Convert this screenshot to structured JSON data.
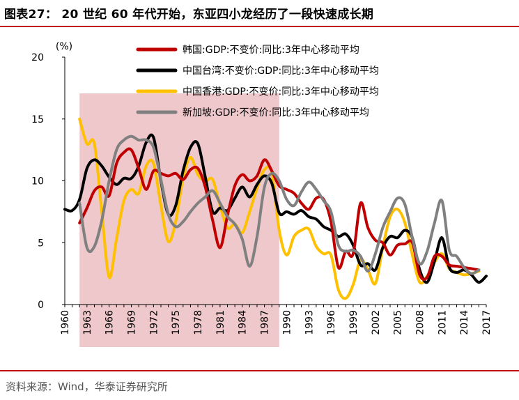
{
  "title": "图表27： 20 世纪 60 年代开始，东亚四小龙经历了一段快速成长期",
  "source": "资料来源：Wind，华泰证券研究所",
  "chart_data": {
    "type": "line",
    "unit_label": "(%)",
    "ylim": [
      0,
      20
    ],
    "yticks": [
      0,
      5,
      10,
      15,
      20
    ],
    "xlim": [
      1960,
      2017
    ],
    "xticks": [
      1960,
      1963,
      1966,
      1969,
      1972,
      1975,
      1978,
      1981,
      1984,
      1987,
      1990,
      1993,
      1996,
      1999,
      2002,
      2005,
      2008,
      2011,
      2014,
      2017
    ],
    "shaded_range": [
      1962,
      1989
    ],
    "shade_color": "#efc8cc",
    "grid": false,
    "legend_position": "top-right",
    "series": [
      {
        "name": "韩国:GDP:不变价:同比:3年中心移动平均",
        "color": "#c00000",
        "x": [
          1962,
          1963,
          1964,
          1965,
          1966,
          1967,
          1968,
          1969,
          1970,
          1971,
          1972,
          1973,
          1974,
          1975,
          1976,
          1977,
          1978,
          1979,
          1980,
          1981,
          1982,
          1983,
          1984,
          1985,
          1986,
          1987,
          1988,
          1989,
          1990,
          1991,
          1992,
          1993,
          1994,
          1995,
          1996,
          1997,
          1998,
          1999,
          2000,
          2001,
          2002,
          2003,
          2004,
          2005,
          2006,
          2007,
          2008,
          2009,
          2010,
          2011,
          2012,
          2013,
          2014,
          2015,
          2016
        ],
        "y": [
          6.6,
          7.8,
          9.2,
          9.5,
          8.8,
          11.4,
          12.3,
          12.5,
          11.0,
          9.3,
          10.8,
          10.6,
          10.4,
          10.6,
          10.1,
          10.9,
          11.0,
          9.5,
          6.8,
          4.6,
          7.2,
          9.6,
          10.5,
          10.0,
          10.4,
          11.7,
          10.8,
          9.6,
          9.3,
          9.0,
          8.2,
          7.7,
          8.6,
          8.5,
          6.7,
          3.0,
          4.3,
          4.1,
          8.2,
          6.2,
          5.2,
          5.0,
          4.0,
          4.8,
          4.9,
          5.0,
          2.4,
          2.2,
          3.9,
          3.9,
          3.2,
          3.1,
          3.0,
          2.9,
          2.8
        ]
      },
      {
        "name": "中国台湾:不变价:GDP:同比:3年中心移动平均",
        "color": "#000000",
        "x": [
          1960,
          1961,
          1962,
          1963,
          1964,
          1965,
          1966,
          1967,
          1968,
          1969,
          1970,
          1971,
          1972,
          1973,
          1974,
          1975,
          1976,
          1977,
          1978,
          1979,
          1980,
          1981,
          1982,
          1983,
          1984,
          1985,
          1986,
          1987,
          1988,
          1989,
          1990,
          1991,
          1992,
          1993,
          1994,
          1995,
          1996,
          1997,
          1998,
          1999,
          2000,
          2001,
          2002,
          2003,
          2004,
          2005,
          2006,
          2007,
          2008,
          2009,
          2010,
          2011,
          2012,
          2013,
          2014,
          2015,
          2016,
          2017
        ],
        "y": [
          7.7,
          7.6,
          8.5,
          11.0,
          11.7,
          11.2,
          10.3,
          9.7,
          10.2,
          10.2,
          11.2,
          13.1,
          13.5,
          10.0,
          7.3,
          8.0,
          10.8,
          12.7,
          13.0,
          10.3,
          7.5,
          7.8,
          7.6,
          8.6,
          9.5,
          8.7,
          9.7,
          10.4,
          9.8,
          7.4,
          7.5,
          7.3,
          7.6,
          7.1,
          6.9,
          6.3,
          6.0,
          5.5,
          5.7,
          4.8,
          3.2,
          3.3,
          2.8,
          4.6,
          5.5,
          5.4,
          6.0,
          5.4,
          2.8,
          1.8,
          3.5,
          5.4,
          3.0,
          2.6,
          2.8,
          2.4,
          1.8,
          2.3
        ]
      },
      {
        "name": "中国香港:GDP:不变价:同比:3年中心移动平均",
        "color": "#ffc000",
        "x": [
          1962,
          1963,
          1964,
          1965,
          1966,
          1967,
          1968,
          1969,
          1970,
          1971,
          1972,
          1973,
          1974,
          1975,
          1976,
          1977,
          1978,
          1979,
          1980,
          1981,
          1982,
          1983,
          1984,
          1985,
          1986,
          1987,
          1988,
          1989,
          1990,
          1991,
          1992,
          1993,
          1994,
          1995,
          1996,
          1997,
          1998,
          1999,
          2000,
          2001,
          2002,
          2003,
          2004,
          2005,
          2006,
          2007,
          2008,
          2009,
          2010,
          2011,
          2012,
          2013,
          2014,
          2015,
          2016
        ],
        "y": [
          15.0,
          13.0,
          13.0,
          7.5,
          2.2,
          5.3,
          8.4,
          9.3,
          9.0,
          11.2,
          11.4,
          8.0,
          5.1,
          6.7,
          10.2,
          11.9,
          10.5,
          10.0,
          10.1,
          8.0,
          6.2,
          6.5,
          5.8,
          7.5,
          9.4,
          10.9,
          10.6,
          6.0,
          4.0,
          5.5,
          6.0,
          6.1,
          4.7,
          4.1,
          4.0,
          1.2,
          0.5,
          1.6,
          3.6,
          2.8,
          1.7,
          4.6,
          7.1,
          7.7,
          6.6,
          4.0,
          1.8,
          2.3,
          3.4,
          4.1,
          2.9,
          2.6,
          2.4,
          2.5,
          2.7
        ]
      },
      {
        "name": "新加坡:GDP:不变价:同比:3年中心移动平均",
        "color": "#808080",
        "x": [
          1962,
          1963,
          1964,
          1965,
          1966,
          1967,
          1968,
          1969,
          1970,
          1971,
          1972,
          1973,
          1974,
          1975,
          1976,
          1977,
          1978,
          1979,
          1980,
          1981,
          1982,
          1983,
          1984,
          1985,
          1986,
          1987,
          1988,
          1989,
          1990,
          1991,
          1992,
          1993,
          1994,
          1995,
          1996,
          1997,
          1998,
          1999,
          2000,
          2001,
          2002,
          2003,
          2004,
          2005,
          2006,
          2007,
          2008,
          2009,
          2010,
          2011,
          2012,
          2013,
          2014,
          2015,
          2016
        ],
        "y": [
          8.2,
          4.6,
          4.7,
          6.8,
          10.0,
          12.5,
          13.3,
          13.6,
          13.3,
          13.3,
          12.7,
          10.1,
          7.3,
          6.3,
          6.7,
          7.5,
          8.2,
          8.7,
          9.2,
          8.2,
          7.1,
          6.5,
          5.3,
          3.1,
          5.5,
          9.5,
          10.6,
          10.0,
          8.5,
          8.0,
          9.1,
          9.9,
          9.3,
          8.4,
          7.5,
          4.8,
          4.3,
          4.4,
          3.9,
          2.7,
          4.1,
          6.2,
          7.5,
          8.6,
          8.1,
          5.4,
          3.3,
          4.3,
          6.6,
          8.4,
          4.4,
          3.9,
          3.0,
          2.5,
          2.8
        ]
      }
    ]
  }
}
